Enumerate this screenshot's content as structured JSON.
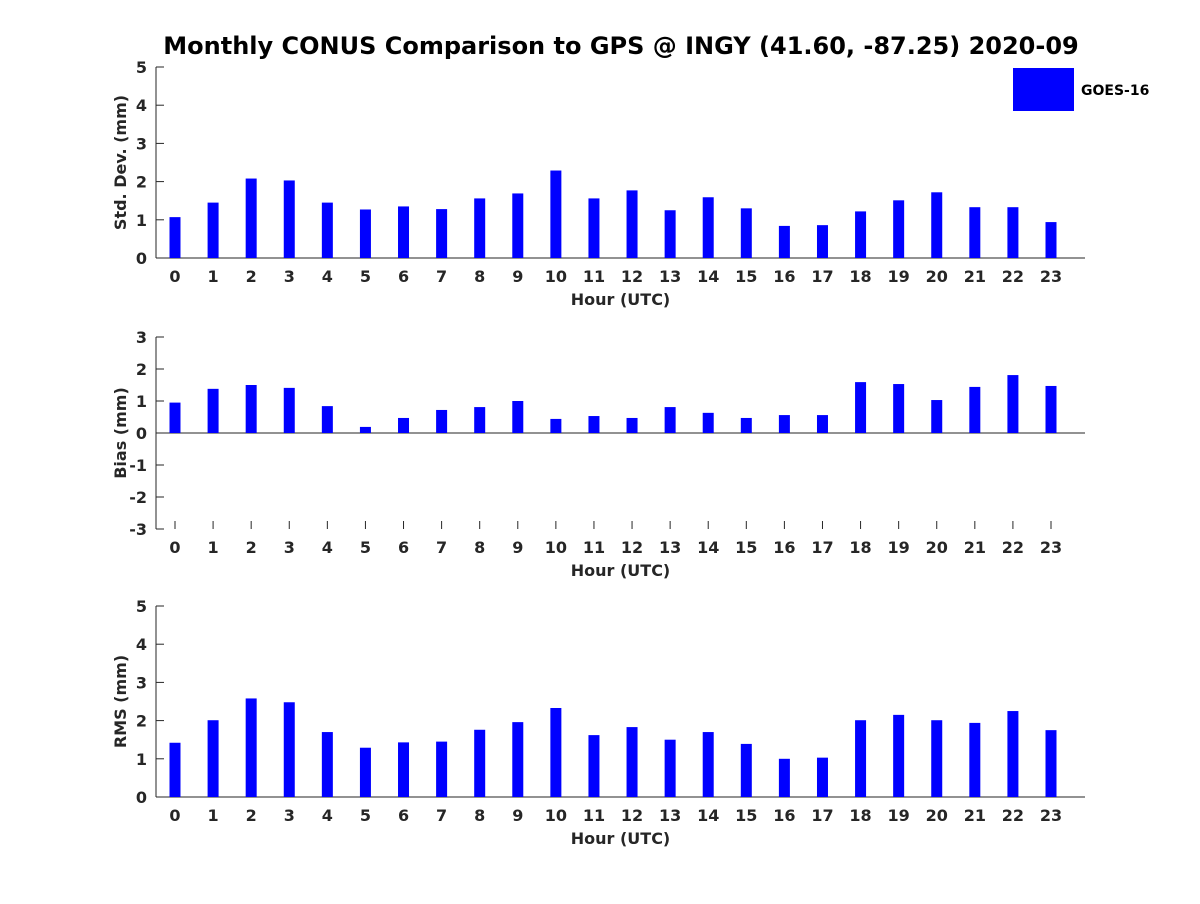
{
  "title": "Monthly CONUS Comparison to GPS @ INGY (41.60, -87.25) 2020-09",
  "legend": {
    "label": "GOES-16",
    "color": "#0000ff",
    "position": "top-right"
  },
  "chart_data": [
    {
      "type": "bar",
      "title": "",
      "xlabel": "Hour (UTC)",
      "ylabel": "Std. Dev. (mm)",
      "categories": [
        "0",
        "1",
        "2",
        "3",
        "4",
        "5",
        "6",
        "7",
        "8",
        "9",
        "10",
        "11",
        "12",
        "13",
        "14",
        "15",
        "16",
        "17",
        "18",
        "19",
        "20",
        "21",
        "22",
        "23"
      ],
      "ylim": [
        0,
        5
      ],
      "yticks": [
        0,
        1,
        2,
        3,
        4,
        5
      ],
      "grid": false,
      "series": [
        {
          "name": "GOES-16",
          "color": "#0000ff",
          "values": [
            1.07,
            1.45,
            2.08,
            2.03,
            1.45,
            1.27,
            1.35,
            1.28,
            1.56,
            1.69,
            2.29,
            1.56,
            1.77,
            1.25,
            1.59,
            1.3,
            0.84,
            0.86,
            1.22,
            1.51,
            1.72,
            1.33,
            1.33,
            0.94
          ]
        }
      ]
    },
    {
      "type": "bar",
      "title": "",
      "xlabel": "Hour (UTC)",
      "ylabel": "Bias (mm)",
      "categories": [
        "0",
        "1",
        "2",
        "3",
        "4",
        "5",
        "6",
        "7",
        "8",
        "9",
        "10",
        "11",
        "12",
        "13",
        "14",
        "15",
        "16",
        "17",
        "18",
        "19",
        "20",
        "21",
        "22",
        "23"
      ],
      "ylim": [
        -3,
        3
      ],
      "yticks": [
        -3,
        -2,
        -1,
        0,
        1,
        2,
        3
      ],
      "grid": false,
      "series": [
        {
          "name": "GOES-16",
          "color": "#0000ff",
          "values": [
            0.95,
            1.38,
            1.5,
            1.41,
            0.84,
            0.19,
            0.47,
            0.72,
            0.81,
            1.0,
            0.44,
            0.53,
            0.47,
            0.81,
            0.63,
            0.47,
            0.56,
            0.56,
            1.59,
            1.53,
            1.03,
            1.44,
            1.81,
            1.47
          ]
        }
      ]
    },
    {
      "type": "bar",
      "title": "",
      "xlabel": "Hour (UTC)",
      "ylabel": "RMS (mm)",
      "categories": [
        "0",
        "1",
        "2",
        "3",
        "4",
        "5",
        "6",
        "7",
        "8",
        "9",
        "10",
        "11",
        "12",
        "13",
        "14",
        "15",
        "16",
        "17",
        "18",
        "19",
        "20",
        "21",
        "22",
        "23"
      ],
      "ylim": [
        0,
        5
      ],
      "yticks": [
        0,
        1,
        2,
        3,
        4,
        5
      ],
      "grid": false,
      "series": [
        {
          "name": "GOES-16",
          "color": "#0000ff",
          "values": [
            1.42,
            2.01,
            2.58,
            2.48,
            1.7,
            1.29,
            1.43,
            1.45,
            1.76,
            1.96,
            2.33,
            1.62,
            1.83,
            1.5,
            1.7,
            1.39,
            1.0,
            1.03,
            2.01,
            2.15,
            2.01,
            1.94,
            2.25,
            1.75
          ]
        }
      ]
    }
  ]
}
